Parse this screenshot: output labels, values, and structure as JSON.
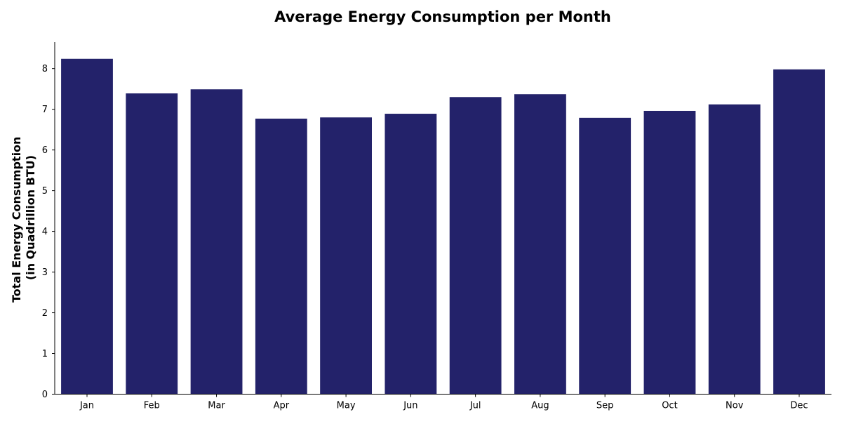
{
  "chart_data": {
    "type": "bar",
    "title": "Average Energy Consumption per Month",
    "xlabel": "",
    "ylabel_lines": [
      "Total Energy Consumption",
      "(in Quadrillion BTU)"
    ],
    "categories": [
      "Jan",
      "Feb",
      "Mar",
      "Apr",
      "May",
      "Jun",
      "Jul",
      "Aug",
      "Sep",
      "Oct",
      "Nov",
      "Dec"
    ],
    "values": [
      8.24,
      7.39,
      7.49,
      6.77,
      6.8,
      6.89,
      7.3,
      7.37,
      6.79,
      6.96,
      7.12,
      7.98
    ],
    "ylim": [
      0,
      8.65
    ],
    "yticks": [
      "0",
      "1",
      "2",
      "3",
      "4",
      "5",
      "6",
      "7",
      "8"
    ],
    "grid": false,
    "bar_color": "#23226a"
  }
}
